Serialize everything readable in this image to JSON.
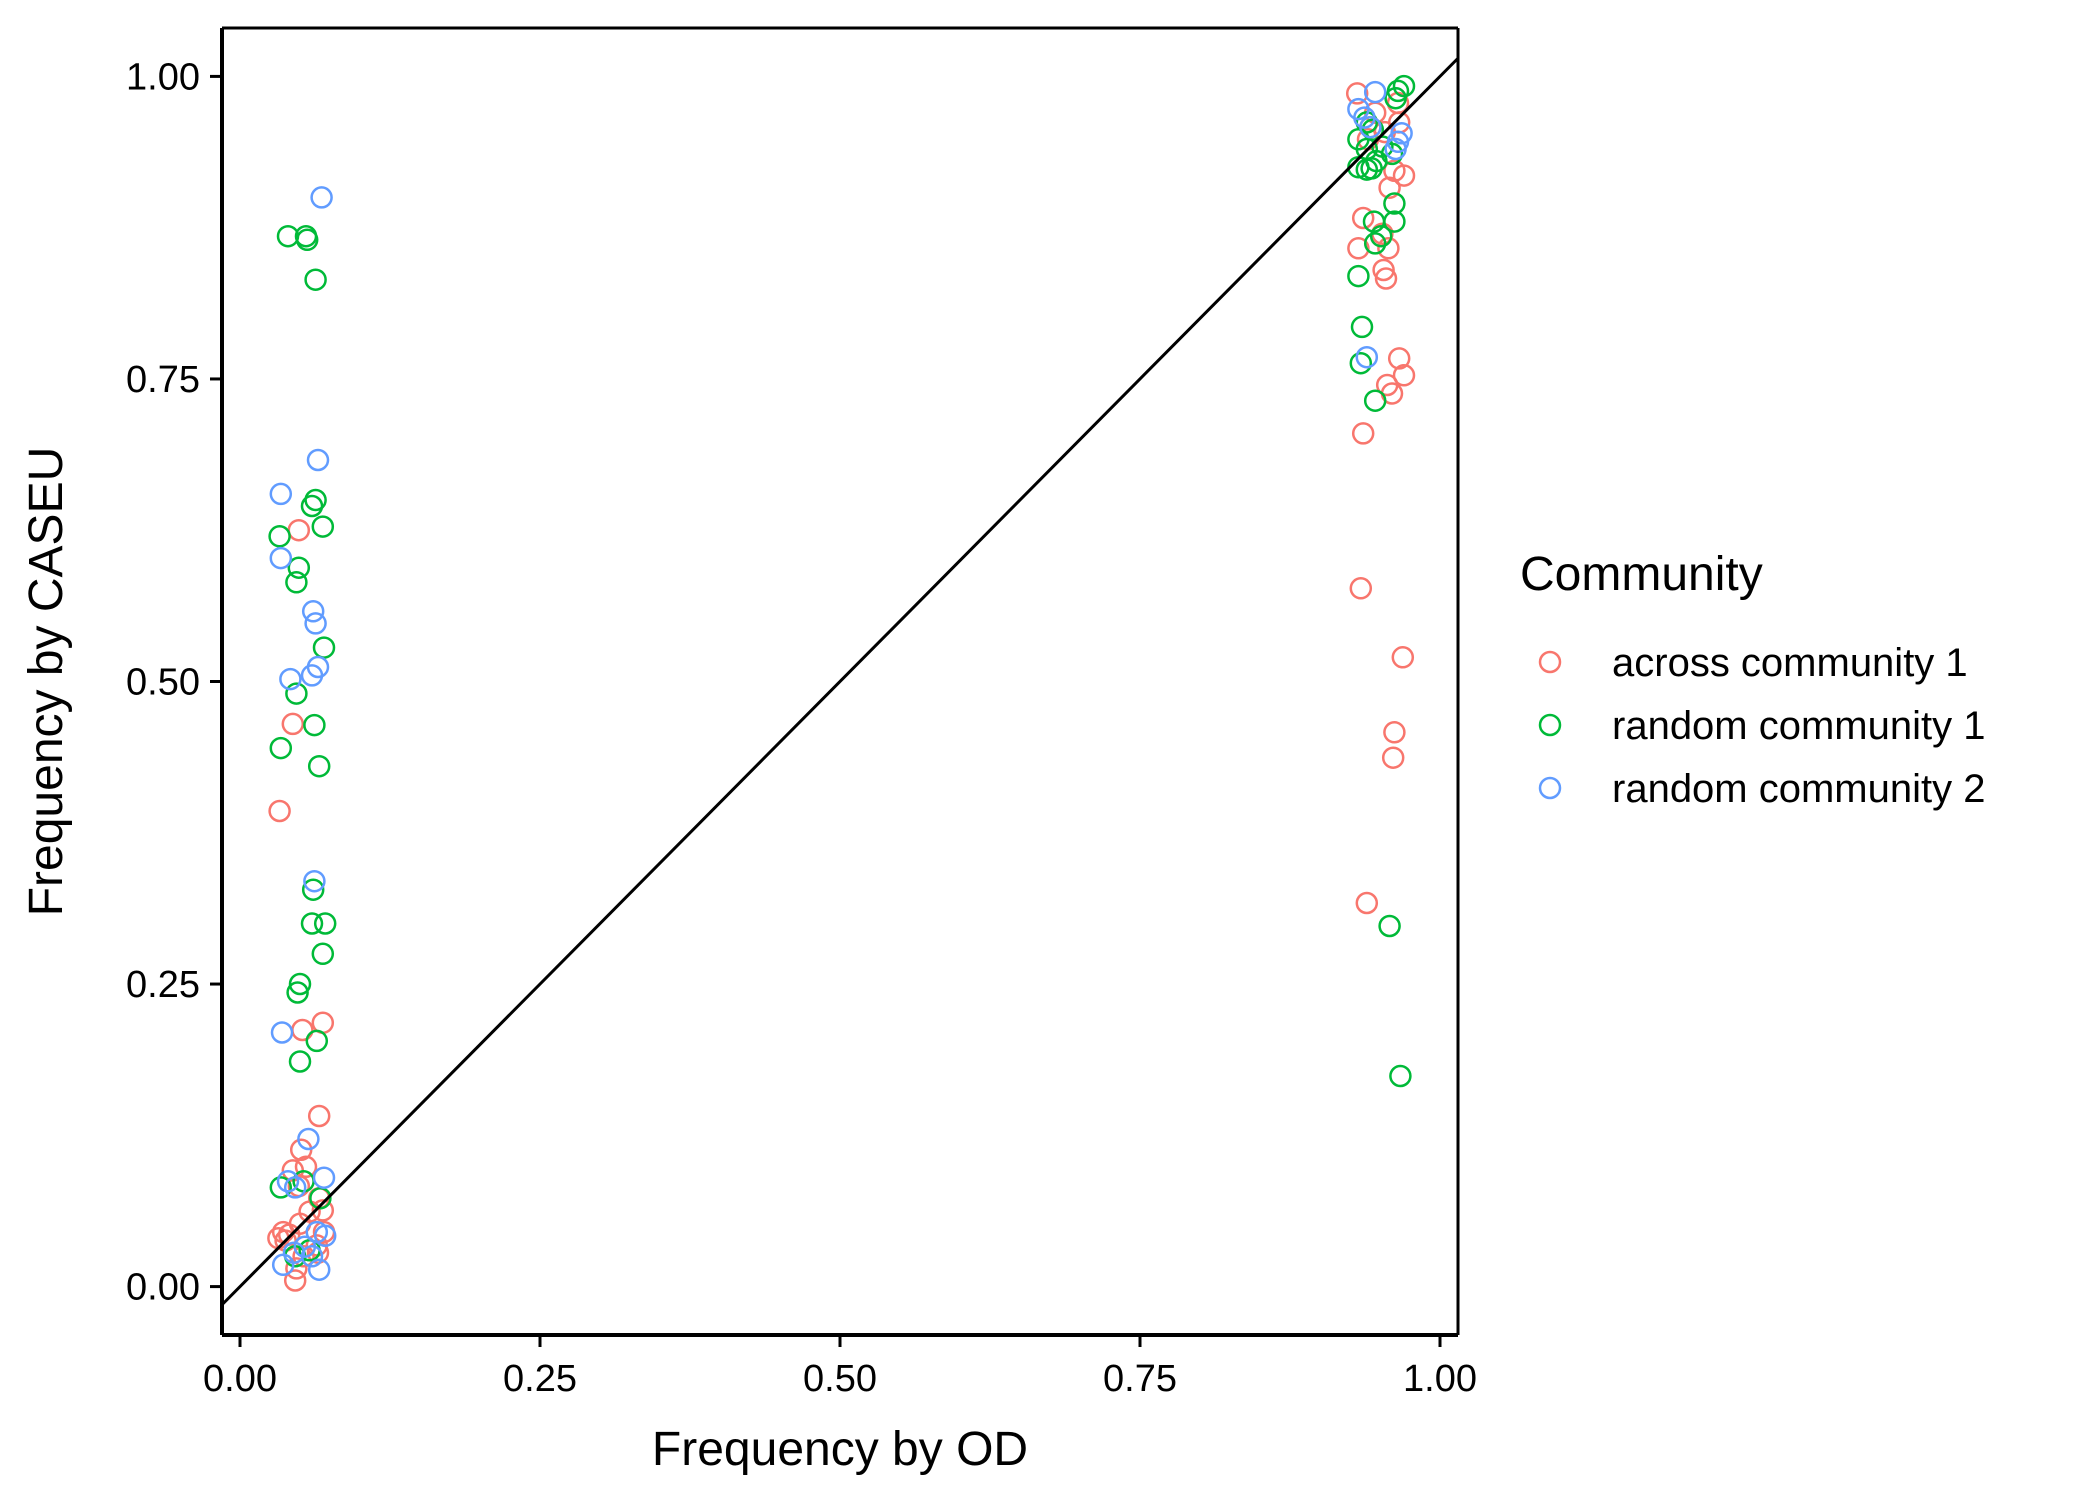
{
  "chart_data": {
    "type": "scatter",
    "xlabel": "Frequency by OD",
    "ylabel": "Frequency by CASEU",
    "xlim": [
      -0.015,
      1.015
    ],
    "ylim": [
      -0.04,
      1.04
    ],
    "x_ticks": [
      "0.00",
      "0.25",
      "0.50",
      "0.75",
      "1.00"
    ],
    "y_ticks": [
      "0.00",
      "0.25",
      "0.50",
      "0.75",
      "1.00"
    ],
    "grid": false,
    "reference_line": {
      "description": "y = x",
      "slope": 1,
      "intercept": 0
    },
    "legend": {
      "title": "Community",
      "placement": "right",
      "entries": [
        "across community 1",
        "random community 1",
        "random community 2"
      ]
    },
    "series": [
      {
        "name": "across community 1",
        "color": "#F8766D",
        "points": [
          [
            0.049,
            0.625
          ],
          [
            0.044,
            0.465
          ],
          [
            0.033,
            0.393
          ],
          [
            0.069,
            0.218
          ],
          [
            0.052,
            0.212
          ],
          [
            0.066,
            0.141
          ],
          [
            0.051,
            0.113
          ],
          [
            0.055,
            0.099
          ],
          [
            0.044,
            0.096
          ],
          [
            0.049,
            0.083
          ],
          [
            0.066,
            0.073
          ],
          [
            0.058,
            0.062
          ],
          [
            0.069,
            0.063
          ],
          [
            0.05,
            0.052
          ],
          [
            0.036,
            0.045
          ],
          [
            0.032,
            0.04
          ],
          [
            0.041,
            0.043
          ],
          [
            0.064,
            0.034
          ],
          [
            0.065,
            0.028
          ],
          [
            0.053,
            0.025
          ],
          [
            0.047,
            0.015
          ],
          [
            0.046,
            0.005
          ],
          [
            0.07,
            0.045
          ],
          [
            0.038,
            0.038
          ],
          [
            0.931,
            0.986
          ],
          [
            0.965,
            0.978
          ],
          [
            0.946,
            0.97
          ],
          [
            0.942,
            0.958
          ],
          [
            0.966,
            0.962
          ],
          [
            0.954,
            0.954
          ],
          [
            0.94,
            0.948
          ],
          [
            0.962,
            0.922
          ],
          [
            0.97,
            0.918
          ],
          [
            0.958,
            0.908
          ],
          [
            0.936,
            0.883
          ],
          [
            0.952,
            0.87
          ],
          [
            0.932,
            0.858
          ],
          [
            0.957,
            0.858
          ],
          [
            0.953,
            0.84
          ],
          [
            0.955,
            0.833
          ],
          [
            0.966,
            0.767
          ],
          [
            0.97,
            0.753
          ],
          [
            0.956,
            0.745
          ],
          [
            0.96,
            0.738
          ],
          [
            0.936,
            0.705
          ],
          [
            0.934,
            0.577
          ],
          [
            0.969,
            0.52
          ],
          [
            0.962,
            0.458
          ],
          [
            0.961,
            0.437
          ],
          [
            0.939,
            0.317
          ]
        ]
      },
      {
        "name": "random community 1",
        "color": "#00BA38",
        "points": [
          [
            0.04,
            0.868
          ],
          [
            0.055,
            0.868
          ],
          [
            0.056,
            0.865
          ],
          [
            0.063,
            0.832
          ],
          [
            0.063,
            0.65
          ],
          [
            0.06,
            0.645
          ],
          [
            0.069,
            0.628
          ],
          [
            0.033,
            0.62
          ],
          [
            0.049,
            0.594
          ],
          [
            0.047,
            0.582
          ],
          [
            0.07,
            0.528
          ],
          [
            0.047,
            0.49
          ],
          [
            0.062,
            0.464
          ],
          [
            0.034,
            0.445
          ],
          [
            0.066,
            0.43
          ],
          [
            0.061,
            0.328
          ],
          [
            0.06,
            0.3
          ],
          [
            0.071,
            0.3
          ],
          [
            0.069,
            0.275
          ],
          [
            0.05,
            0.25
          ],
          [
            0.048,
            0.243
          ],
          [
            0.064,
            0.203
          ],
          [
            0.05,
            0.186
          ],
          [
            0.034,
            0.082
          ],
          [
            0.053,
            0.087
          ],
          [
            0.067,
            0.073
          ],
          [
            0.046,
            0.025
          ],
          [
            0.058,
            0.03
          ],
          [
            0.97,
            0.992
          ],
          [
            0.965,
            0.988
          ],
          [
            0.963,
            0.982
          ],
          [
            0.939,
            0.962
          ],
          [
            0.944,
            0.956
          ],
          [
            0.932,
            0.948
          ],
          [
            0.952,
            0.942
          ],
          [
            0.939,
            0.94
          ],
          [
            0.96,
            0.936
          ],
          [
            0.947,
            0.93
          ],
          [
            0.943,
            0.924
          ],
          [
            0.932,
            0.925
          ],
          [
            0.939,
            0.923
          ],
          [
            0.962,
            0.895
          ],
          [
            0.962,
            0.88
          ],
          [
            0.945,
            0.88
          ],
          [
            0.951,
            0.868
          ],
          [
            0.946,
            0.862
          ],
          [
            0.932,
            0.835
          ],
          [
            0.935,
            0.793
          ],
          [
            0.934,
            0.763
          ],
          [
            0.946,
            0.732
          ],
          [
            0.958,
            0.298
          ],
          [
            0.967,
            0.174
          ]
        ]
      },
      {
        "name": "random community 2",
        "color": "#619CFF",
        "points": [
          [
            0.068,
            0.9
          ],
          [
            0.065,
            0.683
          ],
          [
            0.034,
            0.655
          ],
          [
            0.034,
            0.602
          ],
          [
            0.061,
            0.558
          ],
          [
            0.063,
            0.548
          ],
          [
            0.065,
            0.512
          ],
          [
            0.06,
            0.505
          ],
          [
            0.042,
            0.502
          ],
          [
            0.062,
            0.335
          ],
          [
            0.035,
            0.21
          ],
          [
            0.057,
            0.122
          ],
          [
            0.07,
            0.09
          ],
          [
            0.04,
            0.087
          ],
          [
            0.046,
            0.082
          ],
          [
            0.071,
            0.042
          ],
          [
            0.064,
            0.045
          ],
          [
            0.054,
            0.033
          ],
          [
            0.045,
            0.028
          ],
          [
            0.06,
            0.025
          ],
          [
            0.036,
            0.018
          ],
          [
            0.066,
            0.014
          ],
          [
            0.946,
            0.987
          ],
          [
            0.932,
            0.973
          ],
          [
            0.937,
            0.966
          ],
          [
            0.942,
            0.958
          ],
          [
            0.968,
            0.953
          ],
          [
            0.965,
            0.946
          ],
          [
            0.963,
            0.94
          ],
          [
            0.939,
            0.768
          ]
        ]
      }
    ]
  }
}
